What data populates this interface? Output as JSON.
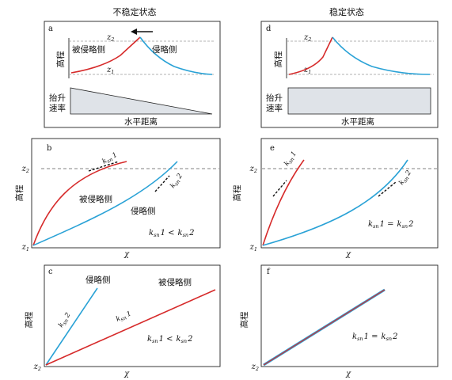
{
  "columns": {
    "left_title": "不稳定状态",
    "right_title": "稳定状态"
  },
  "panels": {
    "a": {
      "letter": "a",
      "ylabel": "高程",
      "z2": "z",
      "z2_sub": "2",
      "z1": "z",
      "z1_sub": "1",
      "left_side": "被侵略侧",
      "right_side": "侵略侧",
      "uplift_label_1": "抬升",
      "uplift_label_2": "速率",
      "xlabel": "水平距离"
    },
    "d": {
      "letter": "d",
      "ylabel": "高程",
      "z2": "z",
      "z2_sub": "2",
      "z1": "z",
      "z1_sub": "1",
      "uplift_label_1": "抬升",
      "uplift_label_2": "速率",
      "xlabel": "水平距离"
    },
    "b": {
      "letter": "b",
      "ylabel": "高程",
      "z2": "z",
      "z2_sub": "2",
      "z1": "z",
      "z1_sub": "1",
      "xlabel": "χ",
      "curve_red": "被侵略侧",
      "curve_blue": "侵略侧",
      "ksn1": "k",
      "ksn1_sub": "sn",
      "ksn1_num": "1",
      "ksn2": "k",
      "ksn2_sub": "sn",
      "ksn2_num": "2",
      "relation_a": "k",
      "relation_a_sub": "sn",
      "relation_a_num": "1 <",
      "relation_b": "k",
      "relation_b_sub": "sn",
      "relation_b_num": "2"
    },
    "e": {
      "letter": "e",
      "ylabel": "高程",
      "z2": "z",
      "z2_sub": "2",
      "z1": "z",
      "z1_sub": "1",
      "xlabel": "χ",
      "ksn1": "k",
      "ksn1_sub": "sn",
      "ksn1_num": "1",
      "ksn2": "k",
      "ksn2_sub": "sn",
      "ksn2_num": "2",
      "relation_a": "k",
      "relation_a_sub": "sn",
      "relation_a_num": "1 =",
      "relation_b": "k",
      "relation_b_sub": "sn",
      "relation_b_num": "2"
    },
    "c": {
      "letter": "c",
      "ylabel": "高程",
      "z2": "z",
      "z2_sub": "2",
      "xlabel": "χ",
      "line_blue": "侵略侧",
      "line_red": "被侵略侧",
      "ksn2": "k",
      "ksn2_sub": "sn",
      "ksn2_num": "2",
      "ksn1": "k",
      "ksn1_sub": "sn",
      "ksn1_num": "1",
      "relation_a": "k",
      "relation_a_sub": "sn",
      "relation_a_num": "1 <",
      "relation_b": "k",
      "relation_b_sub": "sn",
      "relation_b_num": "2"
    },
    "f": {
      "letter": "f",
      "ylabel": "高程",
      "z2": "z",
      "z2_sub": "2",
      "xlabel": "χ",
      "relation_a": "k",
      "relation_a_sub": "sn",
      "relation_a_num": "1 =",
      "relation_b": "k",
      "relation_b_sub": "sn",
      "relation_b_num": "2"
    }
  },
  "colors": {
    "red": "#d62a2a",
    "blue": "#2aa2d6",
    "wedge": "#dfe3e8",
    "dash": "#9a9a9a"
  }
}
